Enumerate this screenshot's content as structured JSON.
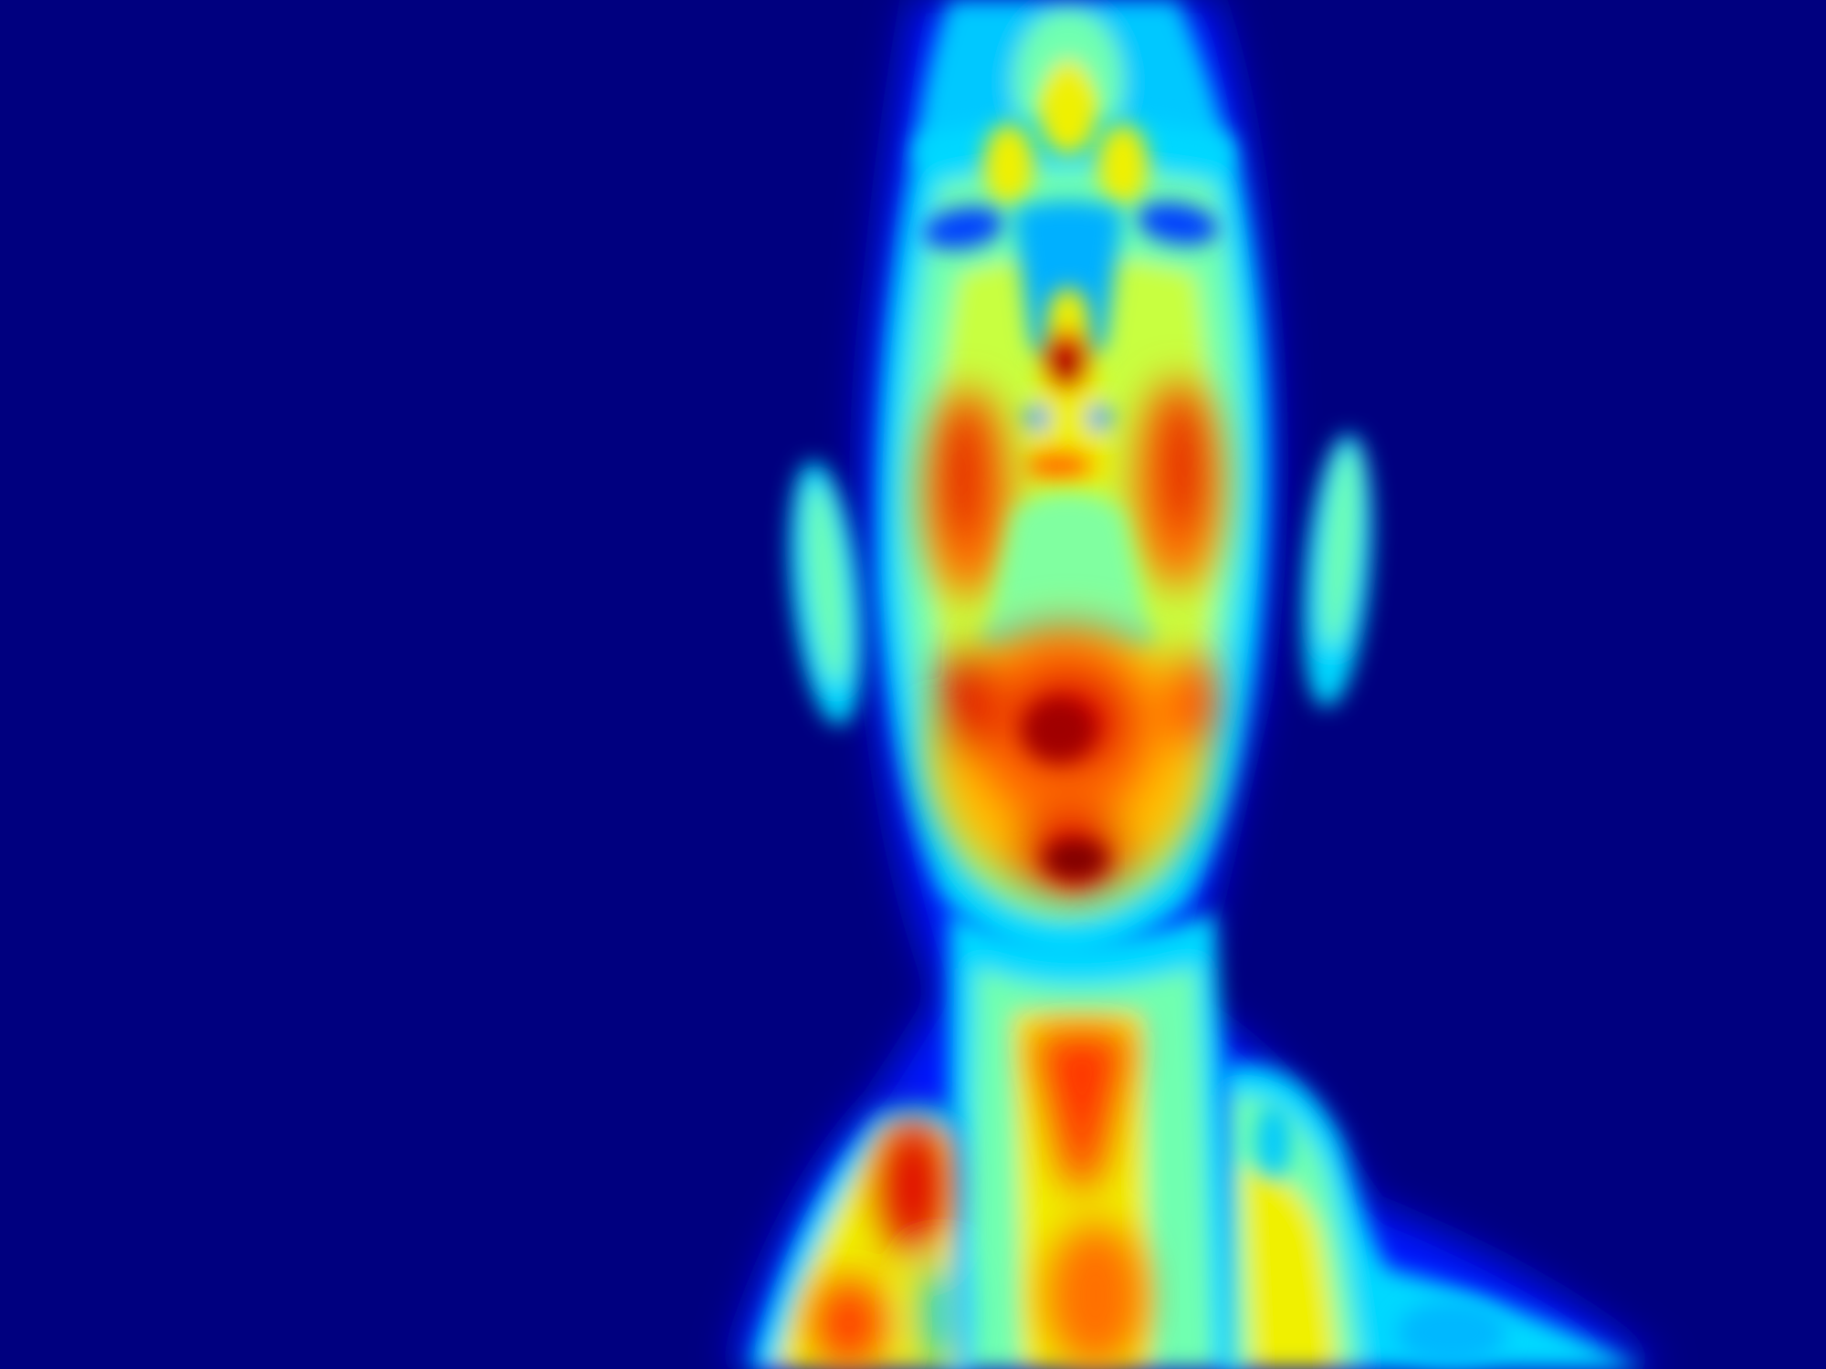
{
  "image": {
    "kind": "thermal-image",
    "subject": "head-and-shoulders",
    "palette": {
      "background": "#00007f",
      "cold": "#0010ff",
      "cool": "#00c8ff",
      "mid": "#70ffb0",
      "warm": "#f0f000",
      "hot": "#ff6a00",
      "hottest": "#e00000",
      "peak": "#800000"
    }
  }
}
